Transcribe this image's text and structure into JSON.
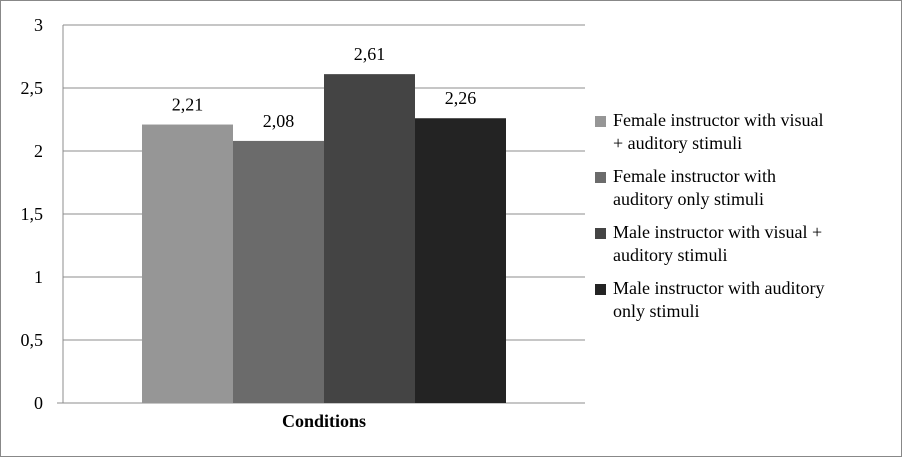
{
  "chart_data": {
    "type": "bar",
    "categories": [
      "Conditions"
    ],
    "xlabel": "Conditions",
    "ylabel": "",
    "ylim": [
      0,
      3
    ],
    "yticks": [
      "0",
      "0,5",
      "1",
      "1,5",
      "2",
      "2,5",
      "3"
    ],
    "grid": true,
    "legend_position": "right",
    "series": [
      {
        "name": "Female instructor with visual + auditory stimuli",
        "values": [
          2.21
        ],
        "label": "2,21",
        "color": "#969696"
      },
      {
        "name": "Female instructor with auditory only stimuli",
        "values": [
          2.08
        ],
        "label": "2,08",
        "color": "#6b6b6b"
      },
      {
        "name": "Male instructor with visual + auditory stimuli",
        "values": [
          2.61
        ],
        "label": "2,61",
        "color": "#444444"
      },
      {
        "name": "Male instructor with auditory only stimuli",
        "values": [
          2.26
        ],
        "label": "2,26",
        "color": "#232323"
      }
    ]
  },
  "legend": {
    "items": [
      {
        "line1": "Female instructor with visual",
        "line2": "+ auditory stimuli"
      },
      {
        "line1": "Female instructor with",
        "line2": "auditory only stimuli"
      },
      {
        "line1": "Male instructor with visual +",
        "line2": "auditory stimuli"
      },
      {
        "line1": "Male instructor with auditory",
        "line2": "only stimuli"
      }
    ]
  }
}
